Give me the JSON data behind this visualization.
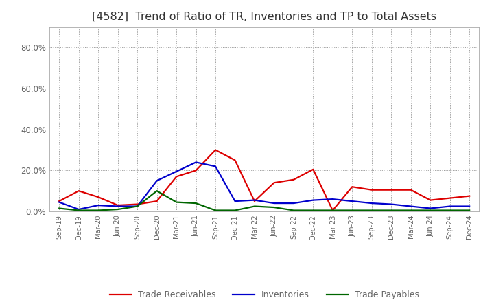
{
  "title": "[4582]  Trend of Ratio of TR, Inventories and TP to Total Assets",
  "labels": [
    "Sep-19",
    "Dec-19",
    "Mar-20",
    "Jun-20",
    "Sep-20",
    "Dec-20",
    "Mar-21",
    "Jun-21",
    "Sep-21",
    "Dec-21",
    "Mar-22",
    "Jun-22",
    "Sep-22",
    "Dec-22",
    "Mar-23",
    "Jun-23",
    "Sep-23",
    "Dec-23",
    "Mar-24",
    "Jun-24",
    "Sep-24",
    "Dec-24"
  ],
  "trade_receivables": [
    5.0,
    10.0,
    7.0,
    3.0,
    3.5,
    5.0,
    17.0,
    20.0,
    30.0,
    25.0,
    5.0,
    14.0,
    15.5,
    20.5,
    0.5,
    12.0,
    10.5,
    10.5,
    10.5,
    5.5,
    6.5,
    7.5
  ],
  "inventories": [
    4.5,
    1.0,
    3.0,
    2.5,
    2.5,
    15.0,
    19.5,
    24.0,
    22.0,
    5.0,
    5.5,
    4.0,
    4.0,
    5.5,
    6.0,
    5.0,
    4.0,
    3.5,
    2.5,
    1.5,
    2.5,
    2.5
  ],
  "trade_payables": [
    1.5,
    0.5,
    0.5,
    1.0,
    2.5,
    10.0,
    4.5,
    4.0,
    0.5,
    0.5,
    2.5,
    2.0,
    0.5,
    0.5,
    0.5,
    0.5,
    0.5,
    0.5,
    0.5,
    0.5,
    0.5,
    0.5
  ],
  "tr_color": "#dd0000",
  "inv_color": "#0000cc",
  "tp_color": "#006600",
  "ylim": [
    0,
    90
  ],
  "yticks": [
    0,
    20,
    40,
    60,
    80
  ],
  "ytick_labels": [
    "0.0%",
    "20.0%",
    "40.0%",
    "60.0%",
    "80.0%"
  ],
  "bg_color": "#ffffff",
  "grid_color": "#999999",
  "title_fontsize": 11.5,
  "title_color": "#333333",
  "tick_color": "#666666",
  "legend_labels": [
    "Trade Receivables",
    "Inventories",
    "Trade Payables"
  ],
  "line_width": 1.6
}
